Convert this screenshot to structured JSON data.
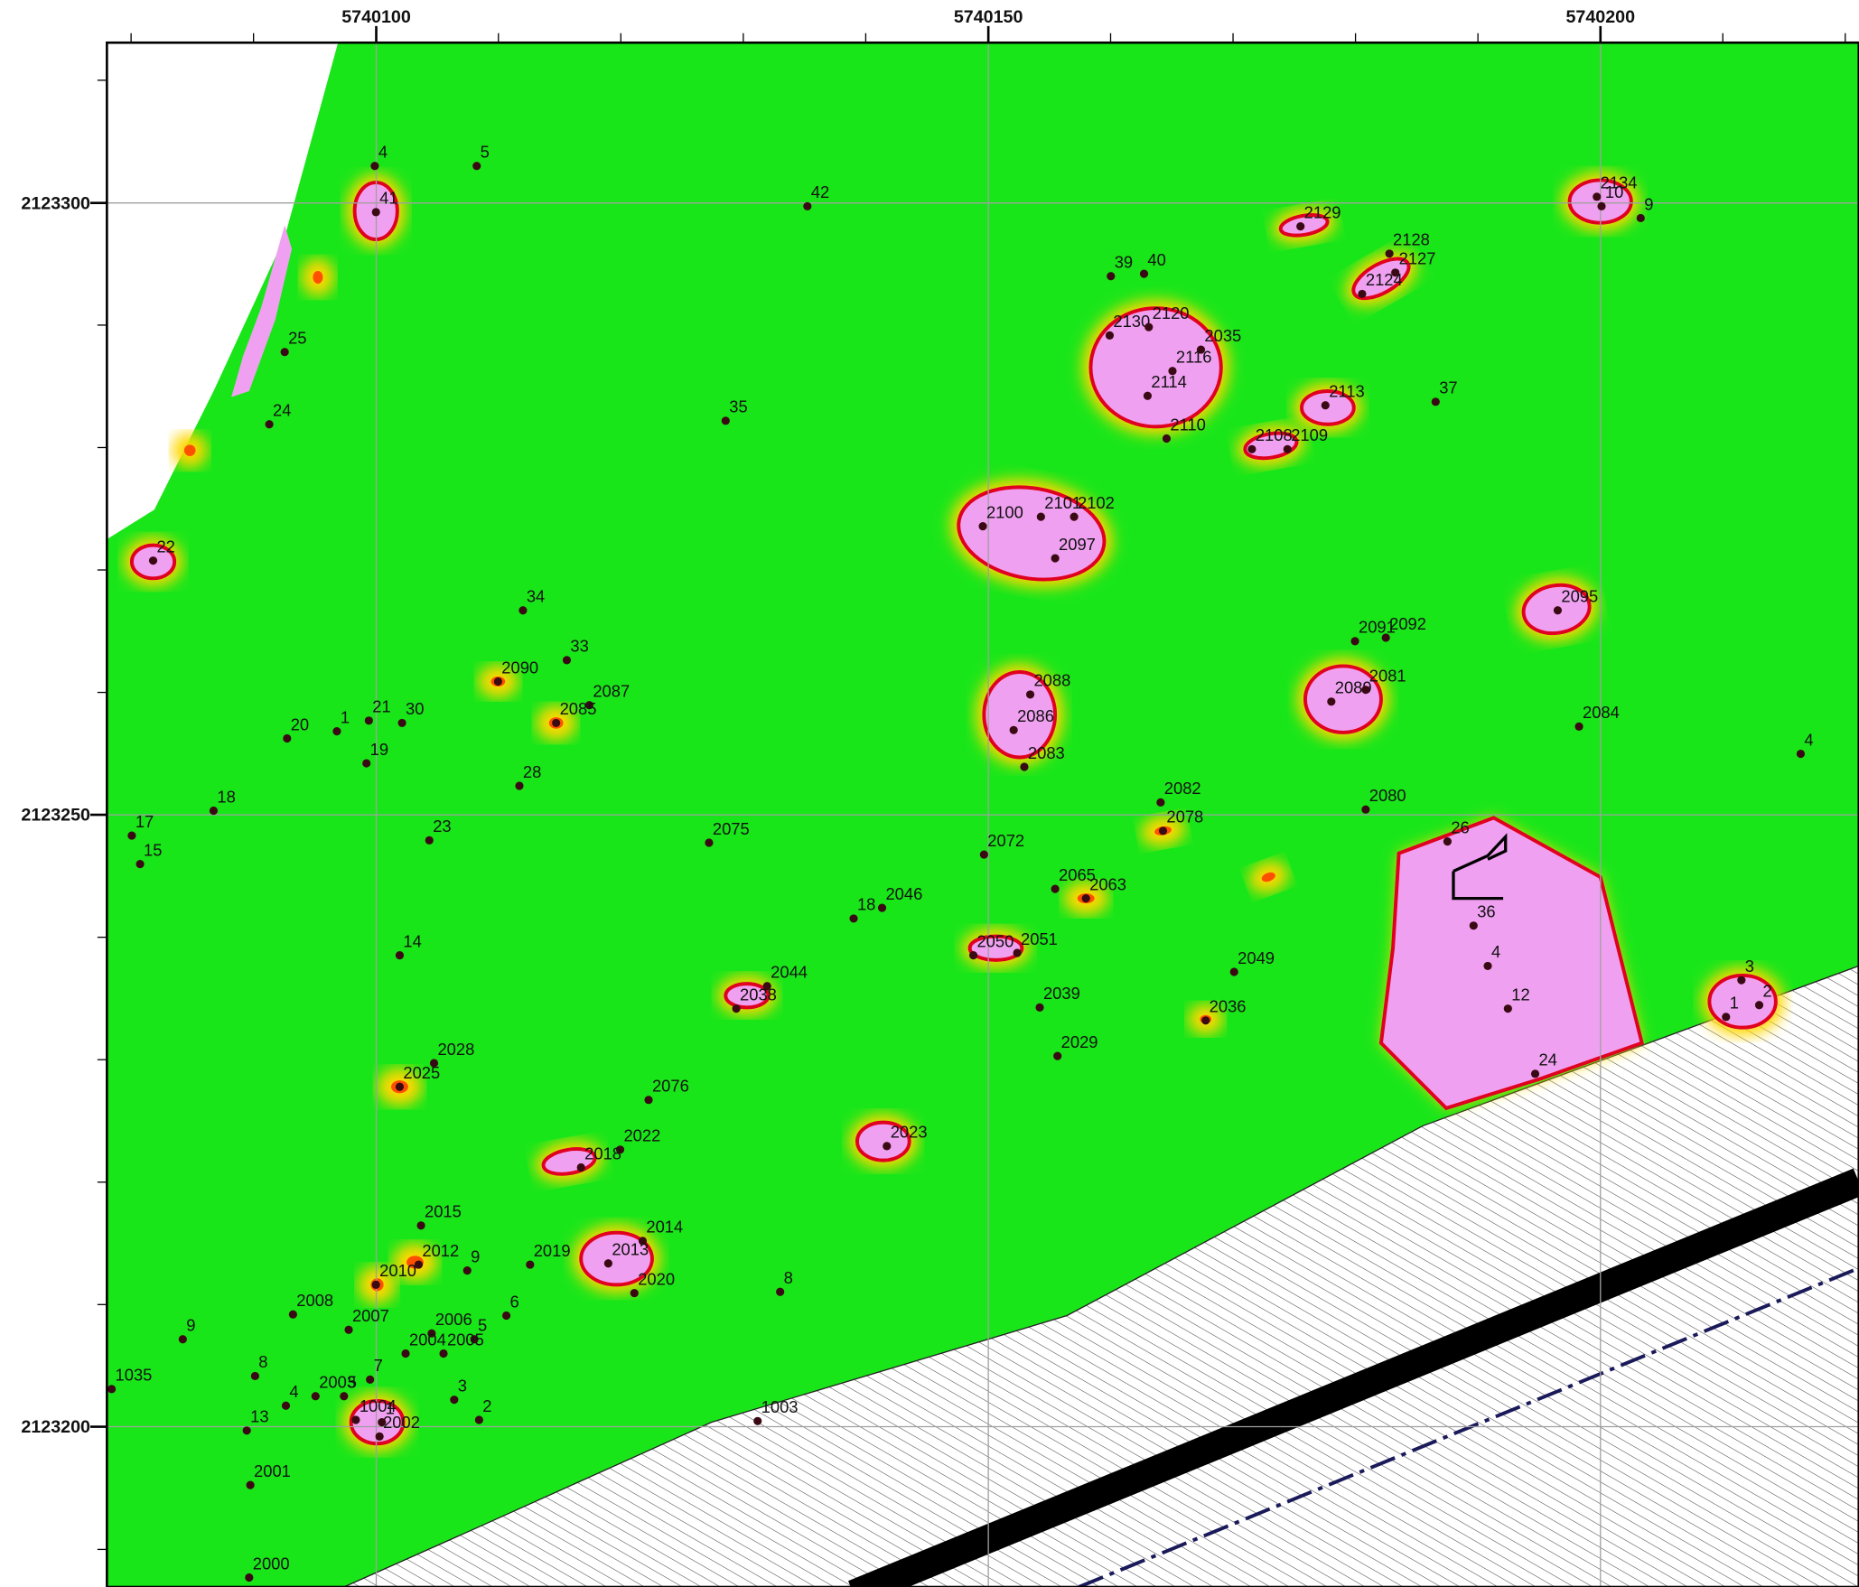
{
  "map": {
    "xlim": [
      5740078,
      5740221.1
    ],
    "ylim": [
      2123186.9,
      2123313.1
    ],
    "xticks": [
      5740100,
      5740150,
      5740200
    ],
    "yticks": [
      2123300,
      2123250,
      2123200
    ],
    "points": [
      "4",
      "5",
      "41",
      "42",
      "2129",
      "2134",
      "10",
      "9",
      "2128",
      "2127",
      "2124",
      "39",
      "40",
      "2130",
      "2120",
      "2035",
      "2116",
      "2114",
      "2110",
      "25",
      "24",
      "35",
      "2113",
      "37",
      "2108",
      "2109",
      "2100",
      "2101",
      "2102",
      "2097",
      "22",
      "34",
      "2095",
      "2091",
      "2092",
      "33",
      "2090",
      "2087",
      "2085",
      "2088",
      "2089",
      "2081",
      "2086",
      "2084",
      "4",
      "20",
      "1",
      "21",
      "30",
      "19",
      "2083",
      "28",
      "18",
      "2082",
      "2080",
      "17",
      "15",
      "23",
      "2075",
      "2078",
      "26",
      "2072",
      "2065",
      "2063",
      "18",
      "2046",
      "36",
      "14",
      "2050",
      "2051",
      "4",
      "2049",
      "3",
      "2044",
      "2038",
      "2",
      "2039",
      "12",
      "1",
      "2036",
      "2029",
      "2028",
      "24",
      "2025",
      "2076",
      "2023",
      "2022",
      "2018",
      "2015",
      "2014",
      "2013",
      "2012",
      "9",
      "2019",
      "2010",
      "8",
      "2020",
      "2008",
      "6",
      "2007",
      "2006",
      "5",
      "9",
      "2004",
      "2005",
      "8",
      "7",
      "1035",
      "2003",
      "5",
      "4",
      "3",
      "13",
      "1004",
      "1",
      "2",
      "2002",
      "1003",
      "2001",
      "2000"
    ]
  }
}
